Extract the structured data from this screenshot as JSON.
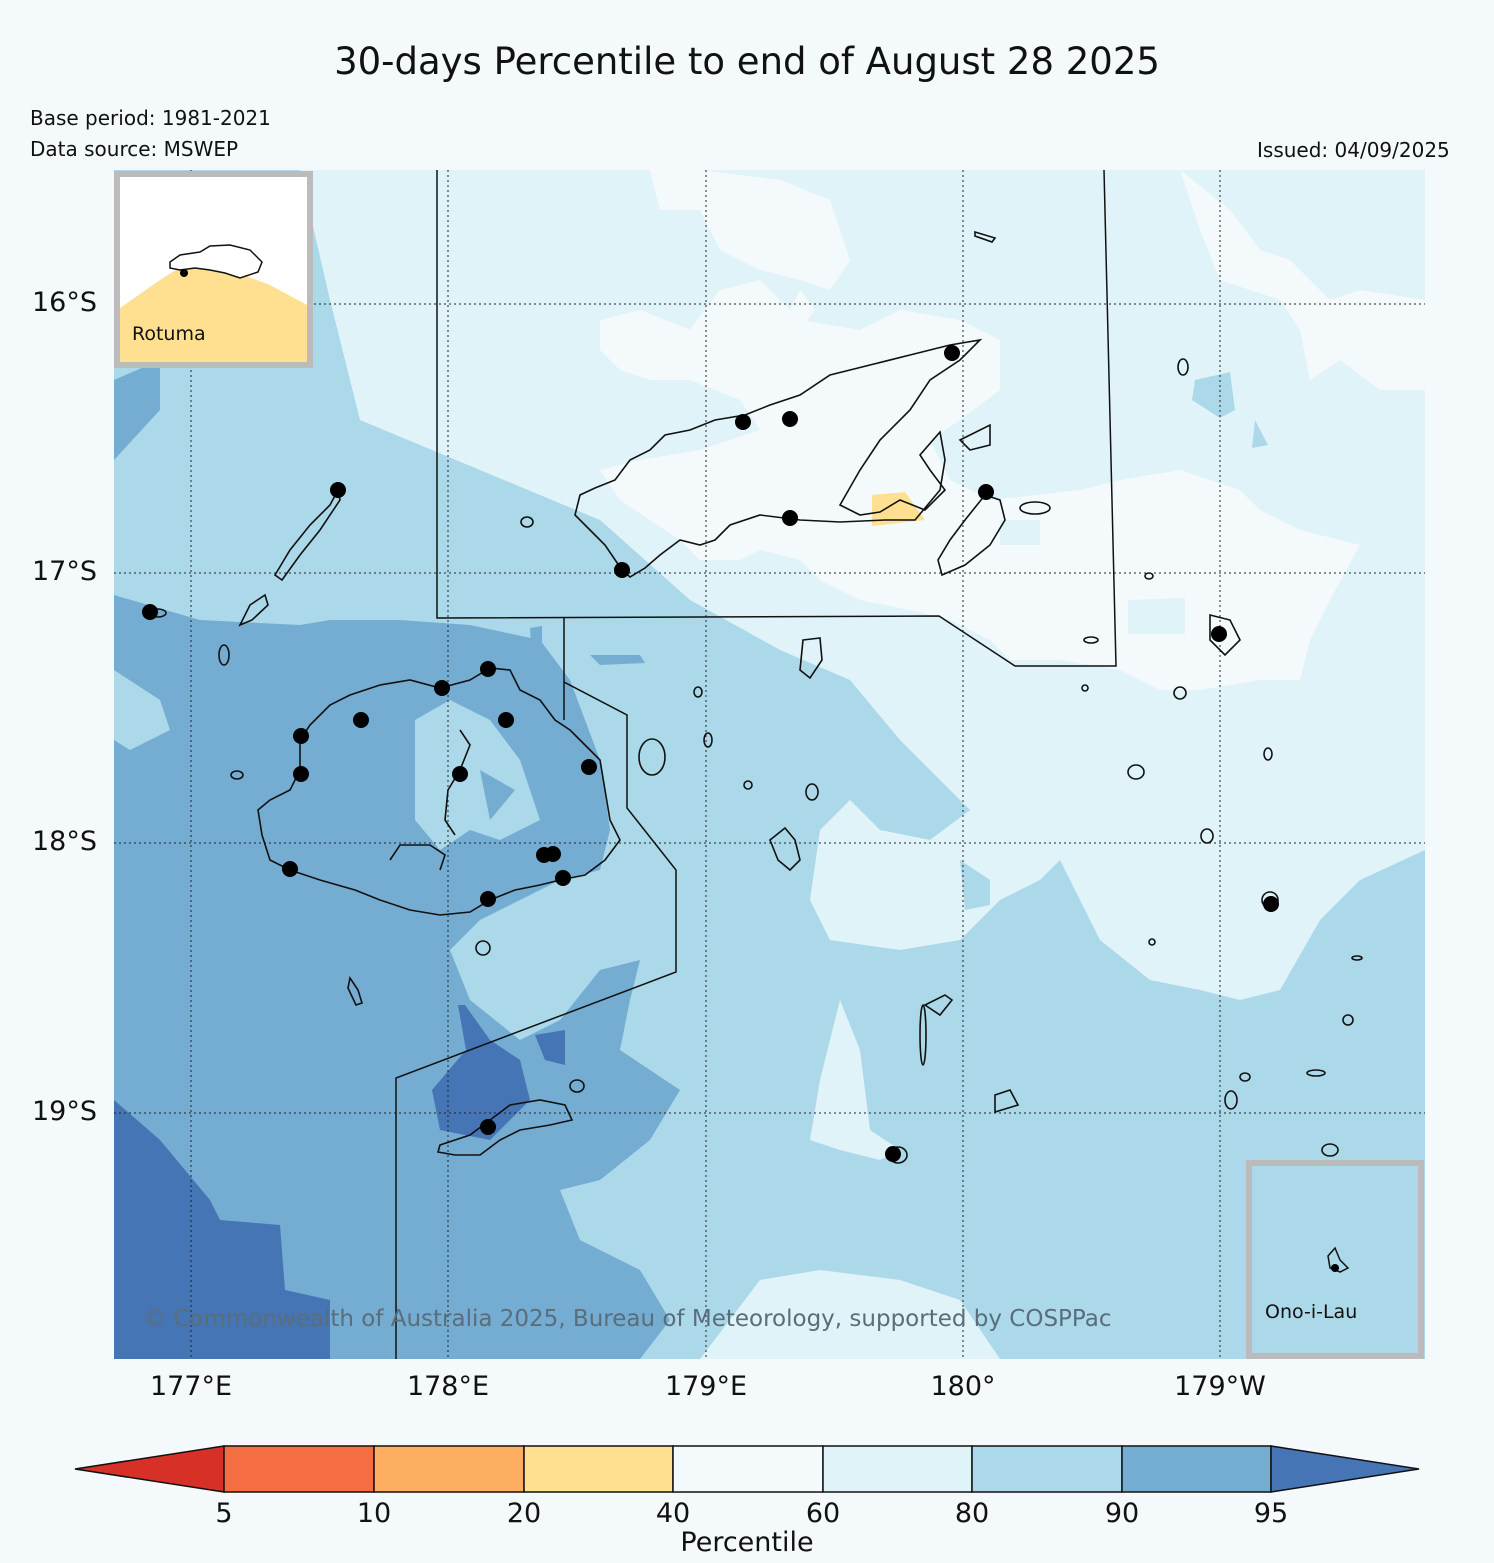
{
  "title": "30-days Percentile to end of August 28 2025",
  "base_period": "Base period: 1981-2021",
  "data_source": "Data source: MSWEP",
  "issued": "Issued: 04/09/2025",
  "lat_labels": [
    "16°S",
    "17°S",
    "18°S",
    "19°S"
  ],
  "lon_labels": [
    "177°E",
    "178°E",
    "179°E",
    "180°",
    "179°W"
  ],
  "insets": {
    "rotuma": "Rotuma",
    "ono_i_lau": "Ono-i-Lau"
  },
  "copyright": "© Commonwealth of Australia 2025, Bureau of Meteorology, supported by COSPPac",
  "colorbar": {
    "label": "Percentile",
    "ticks": [
      "5",
      "10",
      "20",
      "40",
      "60",
      "80",
      "90",
      "95"
    ],
    "colors": [
      "#d73027",
      "#f46d43",
      "#fdae61",
      "#fee090",
      "#f4f9fc",
      "#e0f3f8",
      "#abd9e9",
      "#74add1",
      "#4575b4"
    ]
  }
}
